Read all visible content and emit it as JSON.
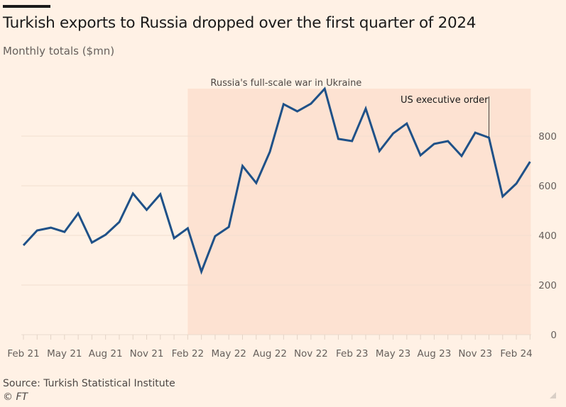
{
  "header": {
    "title": "Turkish exports to Russia dropped over the first quarter of 2024",
    "subtitle": "Monthly totals ($mn)"
  },
  "footer": {
    "source": "Source: Turkish Statistical Institute",
    "copyright": "© FT"
  },
  "colors": {
    "background": "#fff1e5",
    "shaded_region": "#fde2d2",
    "line": "#1f5188",
    "grid": "#f2dfd0"
  },
  "chart_data": {
    "type": "line",
    "title": "Turkish exports to Russia dropped over the first quarter of 2024",
    "subtitle": "Monthly totals ($mn)",
    "xlabel": "",
    "ylabel": "Monthly totals ($mn)",
    "ylim": [
      0,
      1000
    ],
    "yticks": [
      0,
      200,
      400,
      600,
      800
    ],
    "y_axis_side": "right",
    "grid": true,
    "x": [
      "Feb 21",
      "Mar 21",
      "Apr 21",
      "May 21",
      "Jun 21",
      "Jul 21",
      "Aug 21",
      "Sep 21",
      "Oct 21",
      "Nov 21",
      "Dec 21",
      "Jan 22",
      "Feb 22",
      "Mar 22",
      "Apr 22",
      "May 22",
      "Jun 22",
      "Jul 22",
      "Aug 22",
      "Sep 22",
      "Oct 22",
      "Nov 22",
      "Dec 22",
      "Jan 23",
      "Feb 23",
      "Mar 23",
      "Apr 23",
      "May 23",
      "Jun 23",
      "Jul 23",
      "Aug 23",
      "Sep 23",
      "Oct 23",
      "Nov 23",
      "Dec 23",
      "Jan 24",
      "Feb 24",
      "Mar 24"
    ],
    "xtick_labels": [
      "Feb 21",
      "May 21",
      "Aug 21",
      "Nov 21",
      "Feb 22",
      "May 22",
      "Aug 22",
      "Nov 22",
      "Feb 23",
      "May 23",
      "Aug 23",
      "Nov 23",
      "Feb 24"
    ],
    "series": [
      {
        "name": "Turkish exports to Russia",
        "values": [
          360,
          420,
          431,
          414,
          489,
          371,
          403,
          454,
          569,
          503,
          566,
          389,
          429,
          254,
          397,
          434,
          680,
          611,
          737,
          929,
          900,
          931,
          991,
          789,
          780,
          911,
          740,
          811,
          851,
          723,
          769,
          780,
          720,
          814,
          794,
          557,
          609,
          697
        ]
      }
    ],
    "annotations": [
      {
        "type": "shaded_region",
        "label": "Russia's full-scale war in Ukraine",
        "x_start": "Feb 22",
        "x_end": "Mar 24"
      },
      {
        "type": "marker_line",
        "label": "US executive order",
        "x": "Dec 23"
      }
    ],
    "legend": "none"
  }
}
